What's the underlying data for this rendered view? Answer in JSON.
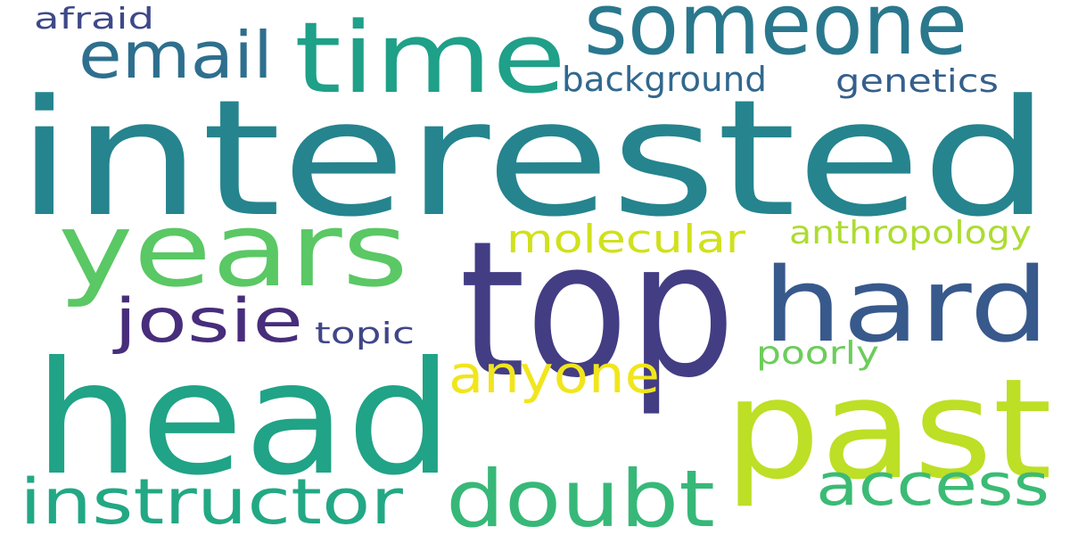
{
  "words": [
    {
      "text": "interested",
      "color": "#25848e"
    },
    {
      "text": "top",
      "color": "#433d84"
    },
    {
      "text": "head",
      "color": "#20a386"
    },
    {
      "text": "past",
      "color": "#bddf26"
    },
    {
      "text": "time",
      "color": "#1fa088"
    },
    {
      "text": "years",
      "color": "#5ac864"
    },
    {
      "text": "hard",
      "color": "#38598c"
    },
    {
      "text": "someone",
      "color": "#2a788e"
    },
    {
      "text": "doubt",
      "color": "#37b878"
    },
    {
      "text": "instructor",
      "color": "#22a884"
    },
    {
      "text": "email",
      "color": "#2e6f8e"
    },
    {
      "text": "access",
      "color": "#3bbb75"
    },
    {
      "text": "josie",
      "color": "#472d7b"
    },
    {
      "text": "anyone",
      "color": "#f1e51d"
    },
    {
      "text": "molecular",
      "color": "#d0e11c"
    },
    {
      "text": "background",
      "color": "#31688e"
    },
    {
      "text": "genetics",
      "color": "#355f8d"
    },
    {
      "text": "anthropology",
      "color": "#addc30"
    },
    {
      "text": "afraid",
      "color": "#3e4989"
    },
    {
      "text": "topic",
      "color": "#404688"
    },
    {
      "text": "poorly",
      "color": "#6ccd5a"
    }
  ]
}
